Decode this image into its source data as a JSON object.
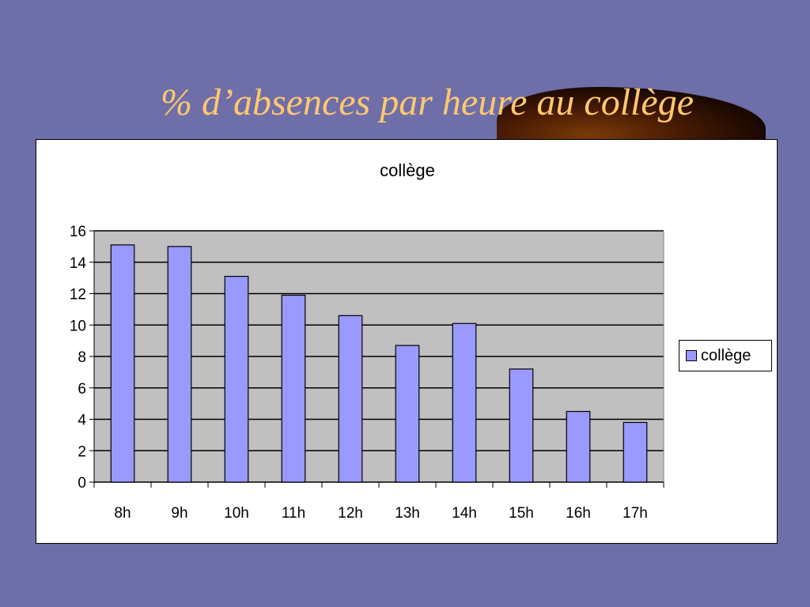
{
  "slide": {
    "title": "% d’absences par heure au collège"
  },
  "colors": {
    "background": "#6e6ea8",
    "title": "#ffc870",
    "plot_area": "#c0c0c0",
    "bar": "#9999ff"
  },
  "chart_data": {
    "type": "bar",
    "title": "collège",
    "xlabel": "",
    "ylabel": "",
    "categories": [
      "8h",
      "9h",
      "10h",
      "11h",
      "12h",
      "13h",
      "14h",
      "15h",
      "16h",
      "17h"
    ],
    "series": [
      {
        "name": "collège",
        "values": [
          15.1,
          15.0,
          13.1,
          11.9,
          10.6,
          8.7,
          10.1,
          7.2,
          4.5,
          3.8
        ]
      }
    ],
    "ylim": [
      0,
      16
    ],
    "yticks": [
      0,
      2,
      4,
      6,
      8,
      10,
      12,
      14,
      16
    ],
    "grid": true,
    "legend": "right"
  }
}
